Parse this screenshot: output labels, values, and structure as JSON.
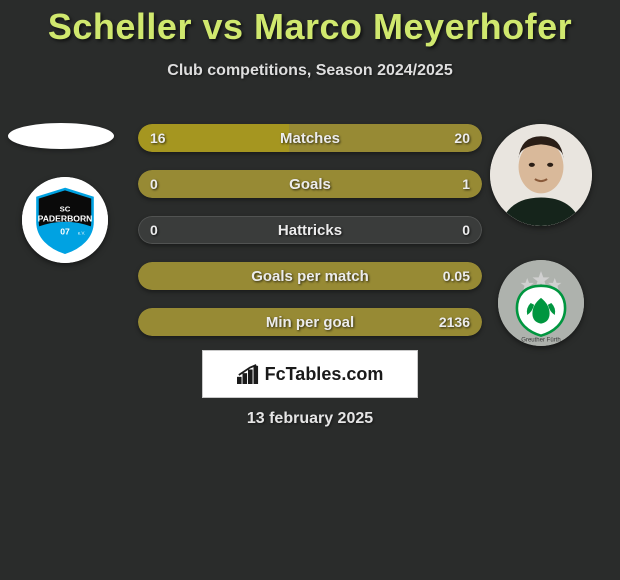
{
  "title": "Scheller vs Marco Meyerhofer",
  "subtitle": "Club competitions, Season 2024/2025",
  "date": "13 february 2025",
  "brand": "FcTables.com",
  "colors": {
    "title": "#d0e86e",
    "background": "#2a2c2b",
    "bar_left_fill": "#a59620",
    "bar_right_fill": "#978a34",
    "bar_bg_dark": "#3a3c3b",
    "white": "#ffffff"
  },
  "left": {
    "player": "Scheller",
    "club": "SC Paderborn 07",
    "club_colors": {
      "primary": "#0a0a0a",
      "secondary": "#00a2e2",
      "white": "#ffffff"
    }
  },
  "right": {
    "player": "Marco Meyerhofer",
    "club": "Greuther Fürth",
    "club_colors": {
      "primary": "#00963f",
      "secondary": "#ffffff",
      "grey": "#b5b5b5"
    }
  },
  "rows": [
    {
      "label": "Matches",
      "left_val": "16",
      "right_val": "20",
      "left_pct": 44,
      "right_pct": 56,
      "bg_mode": "split"
    },
    {
      "label": "Goals",
      "left_val": "0",
      "right_val": "1",
      "left_pct": 0,
      "right_pct": 100,
      "bg_mode": "right-full"
    },
    {
      "label": "Hattricks",
      "left_val": "0",
      "right_val": "0",
      "left_pct": 0,
      "right_pct": 0,
      "bg_mode": "empty"
    },
    {
      "label": "Goals per match",
      "left_val": "",
      "right_val": "0.05",
      "left_pct": 0,
      "right_pct": 100,
      "bg_mode": "right-full"
    },
    {
      "label": "Min per goal",
      "left_val": "",
      "right_val": "2136",
      "left_pct": 0,
      "right_pct": 100,
      "bg_mode": "right-full"
    }
  ]
}
